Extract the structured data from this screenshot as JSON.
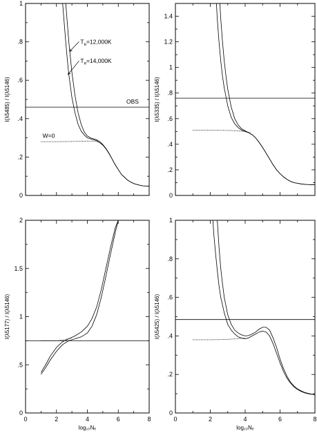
{
  "chart_data": [
    {
      "type": "line",
      "panel": "top-left",
      "ylabel": "I(λ5485) / I(λ5146)",
      "xlabel": "",
      "xlim": [
        0,
        8
      ],
      "ylim": [
        0,
        1
      ],
      "xticks": [
        0,
        2,
        4,
        6,
        8
      ],
      "xtick_labels": [
        "",
        "",
        "",
        "",
        ""
      ],
      "yticks": [
        0,
        0.2,
        0.4,
        0.6,
        0.8,
        1
      ],
      "ytick_labels": [
        "0",
        ".2",
        ".4",
        ".6",
        ".8",
        "1"
      ],
      "hline": {
        "y": 0.46,
        "label": "OBS"
      },
      "annotations": [
        {
          "text": "Te=12,000K",
          "main": "T",
          "sub": "e",
          "rest": "=12,000K",
          "x": 3.55,
          "y": 0.79,
          "arrow_to": [
            2.85,
            0.75
          ]
        },
        {
          "text": "Te=14,000K",
          "main": "T",
          "sub": "e",
          "rest": "=14,000K",
          "x": 3.55,
          "y": 0.69,
          "arrow_to": [
            2.75,
            0.63
          ]
        },
        {
          "text": "W=0",
          "main": "W=0",
          "sub": "",
          "rest": "",
          "x": 1.1,
          "y": 0.3,
          "arrow_to": null
        }
      ],
      "series": [
        {
          "style": "solid",
          "x": [
            2.6,
            2.7,
            2.8,
            2.9,
            3.0,
            3.2,
            3.4,
            3.6,
            3.8,
            4.0,
            4.2,
            4.4,
            4.6,
            4.8,
            5.0,
            5.2,
            5.4,
            5.6,
            5.8,
            6.0,
            6.2,
            6.4,
            6.6,
            6.8,
            7.0,
            7.2,
            7.4,
            7.6,
            7.8,
            8.0
          ],
          "y": [
            1.0,
            0.9,
            0.8,
            0.72,
            0.64,
            0.52,
            0.43,
            0.37,
            0.33,
            0.31,
            0.3,
            0.295,
            0.29,
            0.28,
            0.265,
            0.245,
            0.22,
            0.19,
            0.16,
            0.135,
            0.11,
            0.095,
            0.08,
            0.07,
            0.062,
            0.057,
            0.053,
            0.05,
            0.049,
            0.048
          ]
        },
        {
          "style": "solid",
          "x": [
            2.4,
            2.5,
            2.6,
            2.7,
            2.8,
            3.0,
            3.2,
            3.4,
            3.6,
            3.8,
            4.0,
            4.2,
            4.4,
            4.6,
            4.8,
            5.0,
            5.2,
            5.4,
            5.6,
            5.8,
            6.0,
            6.2,
            6.4,
            6.6,
            6.8,
            7.0,
            7.2,
            7.4,
            7.6,
            7.8,
            8.0
          ],
          "y": [
            1.0,
            0.9,
            0.8,
            0.71,
            0.63,
            0.51,
            0.43,
            0.37,
            0.335,
            0.315,
            0.3,
            0.295,
            0.29,
            0.285,
            0.275,
            0.262,
            0.243,
            0.218,
            0.19,
            0.16,
            0.135,
            0.11,
            0.095,
            0.08,
            0.07,
            0.062,
            0.057,
            0.053,
            0.05,
            0.049,
            0.048
          ]
        },
        {
          "style": "dotted",
          "x": [
            1.0,
            2.0,
            3.0,
            3.5,
            4.0,
            4.4,
            4.8
          ],
          "y": [
            0.28,
            0.28,
            0.281,
            0.282,
            0.283,
            0.283,
            0.278
          ]
        }
      ]
    },
    {
      "type": "line",
      "panel": "top-right",
      "ylabel": "I(λ5335) / I(λ5146)",
      "xlabel": "",
      "xlim": [
        0,
        8
      ],
      "ylim": [
        0,
        1.5
      ],
      "xticks": [
        0,
        2,
        4,
        6,
        8
      ],
      "xtick_labels": [
        "",
        "",
        "",
        "",
        ""
      ],
      "yticks": [
        0,
        0.2,
        0.4,
        0.6,
        0.8,
        1.0,
        1.2,
        1.4
      ],
      "ytick_labels": [
        "0",
        ".2",
        ".4",
        ".6",
        ".8",
        "1",
        "1.2",
        "1.4"
      ],
      "hline": {
        "y": 0.76,
        "label": ""
      },
      "annotations": [],
      "series": [
        {
          "style": "solid",
          "x": [
            2.55,
            2.6,
            2.7,
            2.8,
            2.9,
            3.0,
            3.2,
            3.4,
            3.6,
            3.8,
            4.0,
            4.2,
            4.4,
            4.6,
            4.8,
            5.0,
            5.2,
            5.4,
            5.6,
            5.8,
            6.0,
            6.2,
            6.4,
            6.6,
            6.8,
            7.0,
            7.2,
            7.4,
            7.6,
            7.8,
            8.0
          ],
          "y": [
            1.5,
            1.38,
            1.2,
            1.05,
            0.93,
            0.83,
            0.69,
            0.6,
            0.55,
            0.52,
            0.505,
            0.49,
            0.475,
            0.45,
            0.415,
            0.375,
            0.33,
            0.285,
            0.24,
            0.2,
            0.17,
            0.145,
            0.125,
            0.11,
            0.1,
            0.095,
            0.09,
            0.087,
            0.085,
            0.084,
            0.083
          ]
        },
        {
          "style": "solid",
          "x": [
            2.35,
            2.4,
            2.5,
            2.6,
            2.7,
            2.8,
            3.0,
            3.2,
            3.4,
            3.6,
            3.8,
            4.0,
            4.2,
            4.4,
            4.6,
            4.8,
            5.0,
            5.2,
            5.4,
            5.6,
            5.8,
            6.0,
            6.2,
            6.4,
            6.6,
            6.8,
            7.0,
            7.2,
            7.4,
            7.6,
            7.8,
            8.0
          ],
          "y": [
            1.5,
            1.38,
            1.2,
            1.05,
            0.93,
            0.84,
            0.7,
            0.61,
            0.56,
            0.53,
            0.51,
            0.5,
            0.49,
            0.475,
            0.45,
            0.415,
            0.375,
            0.33,
            0.285,
            0.24,
            0.2,
            0.17,
            0.145,
            0.125,
            0.11,
            0.1,
            0.095,
            0.09,
            0.087,
            0.085,
            0.084,
            0.083
          ]
        },
        {
          "style": "dotted",
          "x": [
            1.0,
            2.0,
            3.0,
            3.5,
            4.0,
            4.3
          ],
          "y": [
            0.51,
            0.51,
            0.508,
            0.505,
            0.5,
            0.49
          ]
        }
      ]
    },
    {
      "type": "line",
      "panel": "bottom-left",
      "ylabel": "I(λ5177) / I(λ5146)",
      "xlabel": "log₁₀Nₑ",
      "xlim": [
        0,
        8
      ],
      "ylim": [
        0,
        2
      ],
      "xticks": [
        0,
        2,
        4,
        6,
        8
      ],
      "xtick_labels": [
        "0",
        "2",
        "4",
        "6",
        "8"
      ],
      "yticks": [
        0,
        0.5,
        1.0,
        1.5,
        2.0
      ],
      "ytick_labels": [
        "0",
        ".5",
        "1",
        "1.5",
        "2"
      ],
      "hline": {
        "y": 0.75,
        "label": ""
      },
      "annotations": [],
      "series": [
        {
          "style": "solid",
          "x": [
            1.0,
            1.3,
            1.6,
            2.0,
            2.4,
            2.8,
            3.2,
            3.6,
            4.0,
            4.3,
            4.6,
            4.9,
            5.2,
            5.5,
            5.8,
            6.0
          ],
          "y": [
            0.4,
            0.47,
            0.55,
            0.64,
            0.71,
            0.75,
            0.77,
            0.79,
            0.83,
            0.9,
            1.02,
            1.2,
            1.42,
            1.65,
            1.87,
            2.0
          ]
        },
        {
          "style": "solid",
          "x": [
            1.0,
            1.3,
            1.6,
            2.0,
            2.4,
            2.8,
            3.2,
            3.6,
            4.0,
            4.3,
            4.6,
            4.9,
            5.2,
            5.5,
            5.8,
            6.0
          ],
          "y": [
            0.42,
            0.5,
            0.59,
            0.68,
            0.74,
            0.77,
            0.8,
            0.84,
            0.9,
            0.98,
            1.1,
            1.28,
            1.5,
            1.72,
            1.92,
            2.0
          ]
        },
        {
          "style": "dotted",
          "x": [
            1.0,
            2.0,
            2.5,
            3.0
          ],
          "y": [
            0.75,
            0.75,
            0.76,
            0.78
          ]
        }
      ]
    },
    {
      "type": "line",
      "panel": "bottom-right",
      "ylabel": "I(λ5425) / I(λ5146)",
      "xlabel": "log₁₀Nₑ",
      "xlim": [
        0,
        8
      ],
      "ylim": [
        0,
        1
      ],
      "xticks": [
        0,
        2,
        4,
        6,
        8
      ],
      "xtick_labels": [
        "0",
        "2",
        "4",
        "6",
        "8"
      ],
      "yticks": [
        0,
        0.2,
        0.4,
        0.6,
        0.8,
        1
      ],
      "ytick_labels": [
        "0",
        ".2",
        ".4",
        ".6",
        ".8",
        "1"
      ],
      "hline": {
        "y": 0.485,
        "label": ""
      },
      "annotations": [],
      "series": [
        {
          "style": "solid",
          "x": [
            2.4,
            2.5,
            2.6,
            2.7,
            2.8,
            3.0,
            3.2,
            3.4,
            3.6,
            3.8,
            4.0,
            4.2,
            4.4,
            4.6,
            4.8,
            5.0,
            5.2,
            5.4,
            5.6,
            5.8,
            6.0,
            6.2,
            6.4,
            6.6,
            6.8,
            7.0,
            7.2,
            7.4,
            7.6,
            7.8,
            8.0
          ],
          "y": [
            1.0,
            0.86,
            0.75,
            0.67,
            0.6,
            0.51,
            0.46,
            0.43,
            0.415,
            0.405,
            0.4,
            0.402,
            0.41,
            0.42,
            0.435,
            0.445,
            0.445,
            0.43,
            0.39,
            0.34,
            0.28,
            0.23,
            0.19,
            0.16,
            0.14,
            0.125,
            0.115,
            0.107,
            0.102,
            0.098,
            0.095
          ]
        },
        {
          "style": "solid",
          "x": [
            2.15,
            2.2,
            2.3,
            2.4,
            2.5,
            2.6,
            2.8,
            3.0,
            3.2,
            3.4,
            3.6,
            3.8,
            4.0,
            4.2,
            4.4,
            4.6,
            4.8,
            5.0,
            5.2,
            5.4,
            5.6,
            5.8,
            6.0,
            6.2,
            6.4,
            6.6,
            6.8,
            7.0,
            7.2,
            7.4,
            7.6,
            7.8,
            8.0
          ],
          "y": [
            1.0,
            0.93,
            0.83,
            0.74,
            0.66,
            0.6,
            0.52,
            0.46,
            0.43,
            0.41,
            0.395,
            0.388,
            0.385,
            0.39,
            0.4,
            0.41,
            0.42,
            0.425,
            0.42,
            0.4,
            0.36,
            0.31,
            0.26,
            0.215,
            0.18,
            0.155,
            0.135,
            0.122,
            0.112,
            0.105,
            0.1,
            0.097,
            0.095
          ]
        },
        {
          "style": "dotted",
          "x": [
            1.0,
            2.0,
            3.0,
            3.5,
            4.0
          ],
          "y": [
            0.38,
            0.38,
            0.382,
            0.385,
            0.39
          ]
        }
      ]
    }
  ]
}
